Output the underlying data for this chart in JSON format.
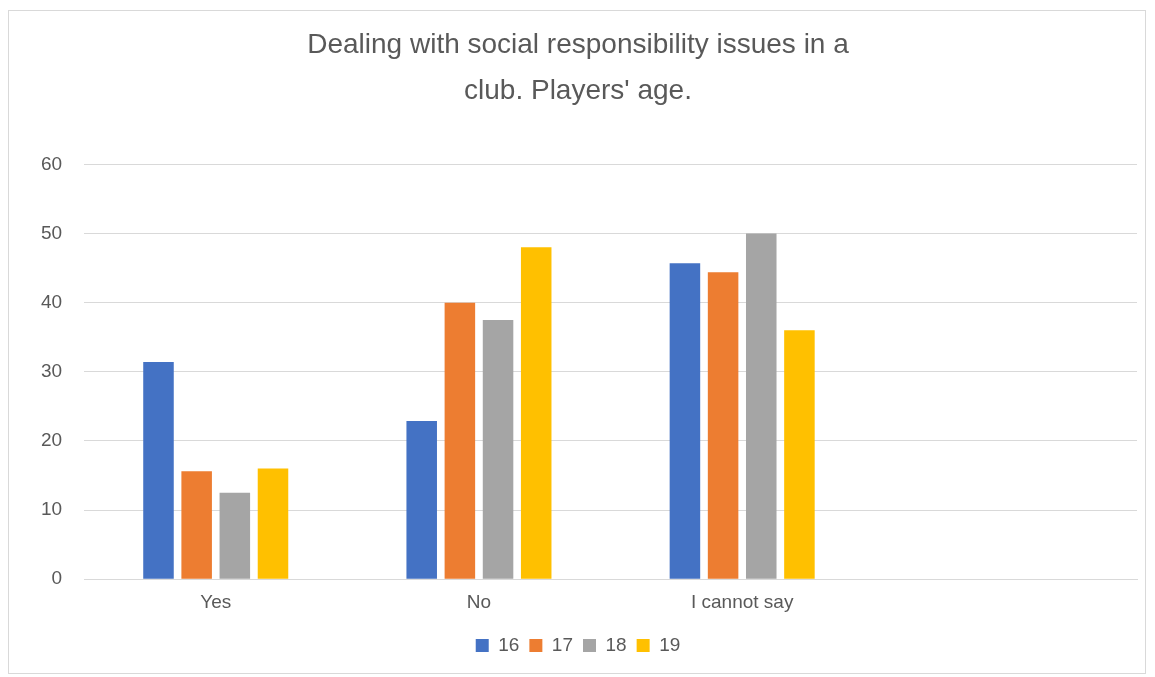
{
  "chart_data": {
    "type": "bar",
    "title": "Dealing with social responsibility issues in a club. Players' age.",
    "categories": [
      "Yes",
      "No",
      "I cannot say",
      null
    ],
    "series": [
      {
        "name": "16",
        "color": "#4472c4",
        "values": [
          31.4,
          22.9,
          45.7,
          null
        ]
      },
      {
        "name": "17",
        "color": "#ed7d31",
        "values": [
          15.6,
          40,
          44.4,
          null
        ]
      },
      {
        "name": "18",
        "color": "#a5a5a5",
        "values": [
          12.5,
          37.5,
          50,
          null
        ]
      },
      {
        "name": "19",
        "color": "#ffc000",
        "values": [
          16,
          48,
          36,
          null
        ]
      }
    ],
    "ylim": [
      0,
      60
    ],
    "yticks": [
      0,
      10,
      20,
      30,
      40,
      50,
      60
    ],
    "grid": "y",
    "legend": "bottom"
  }
}
